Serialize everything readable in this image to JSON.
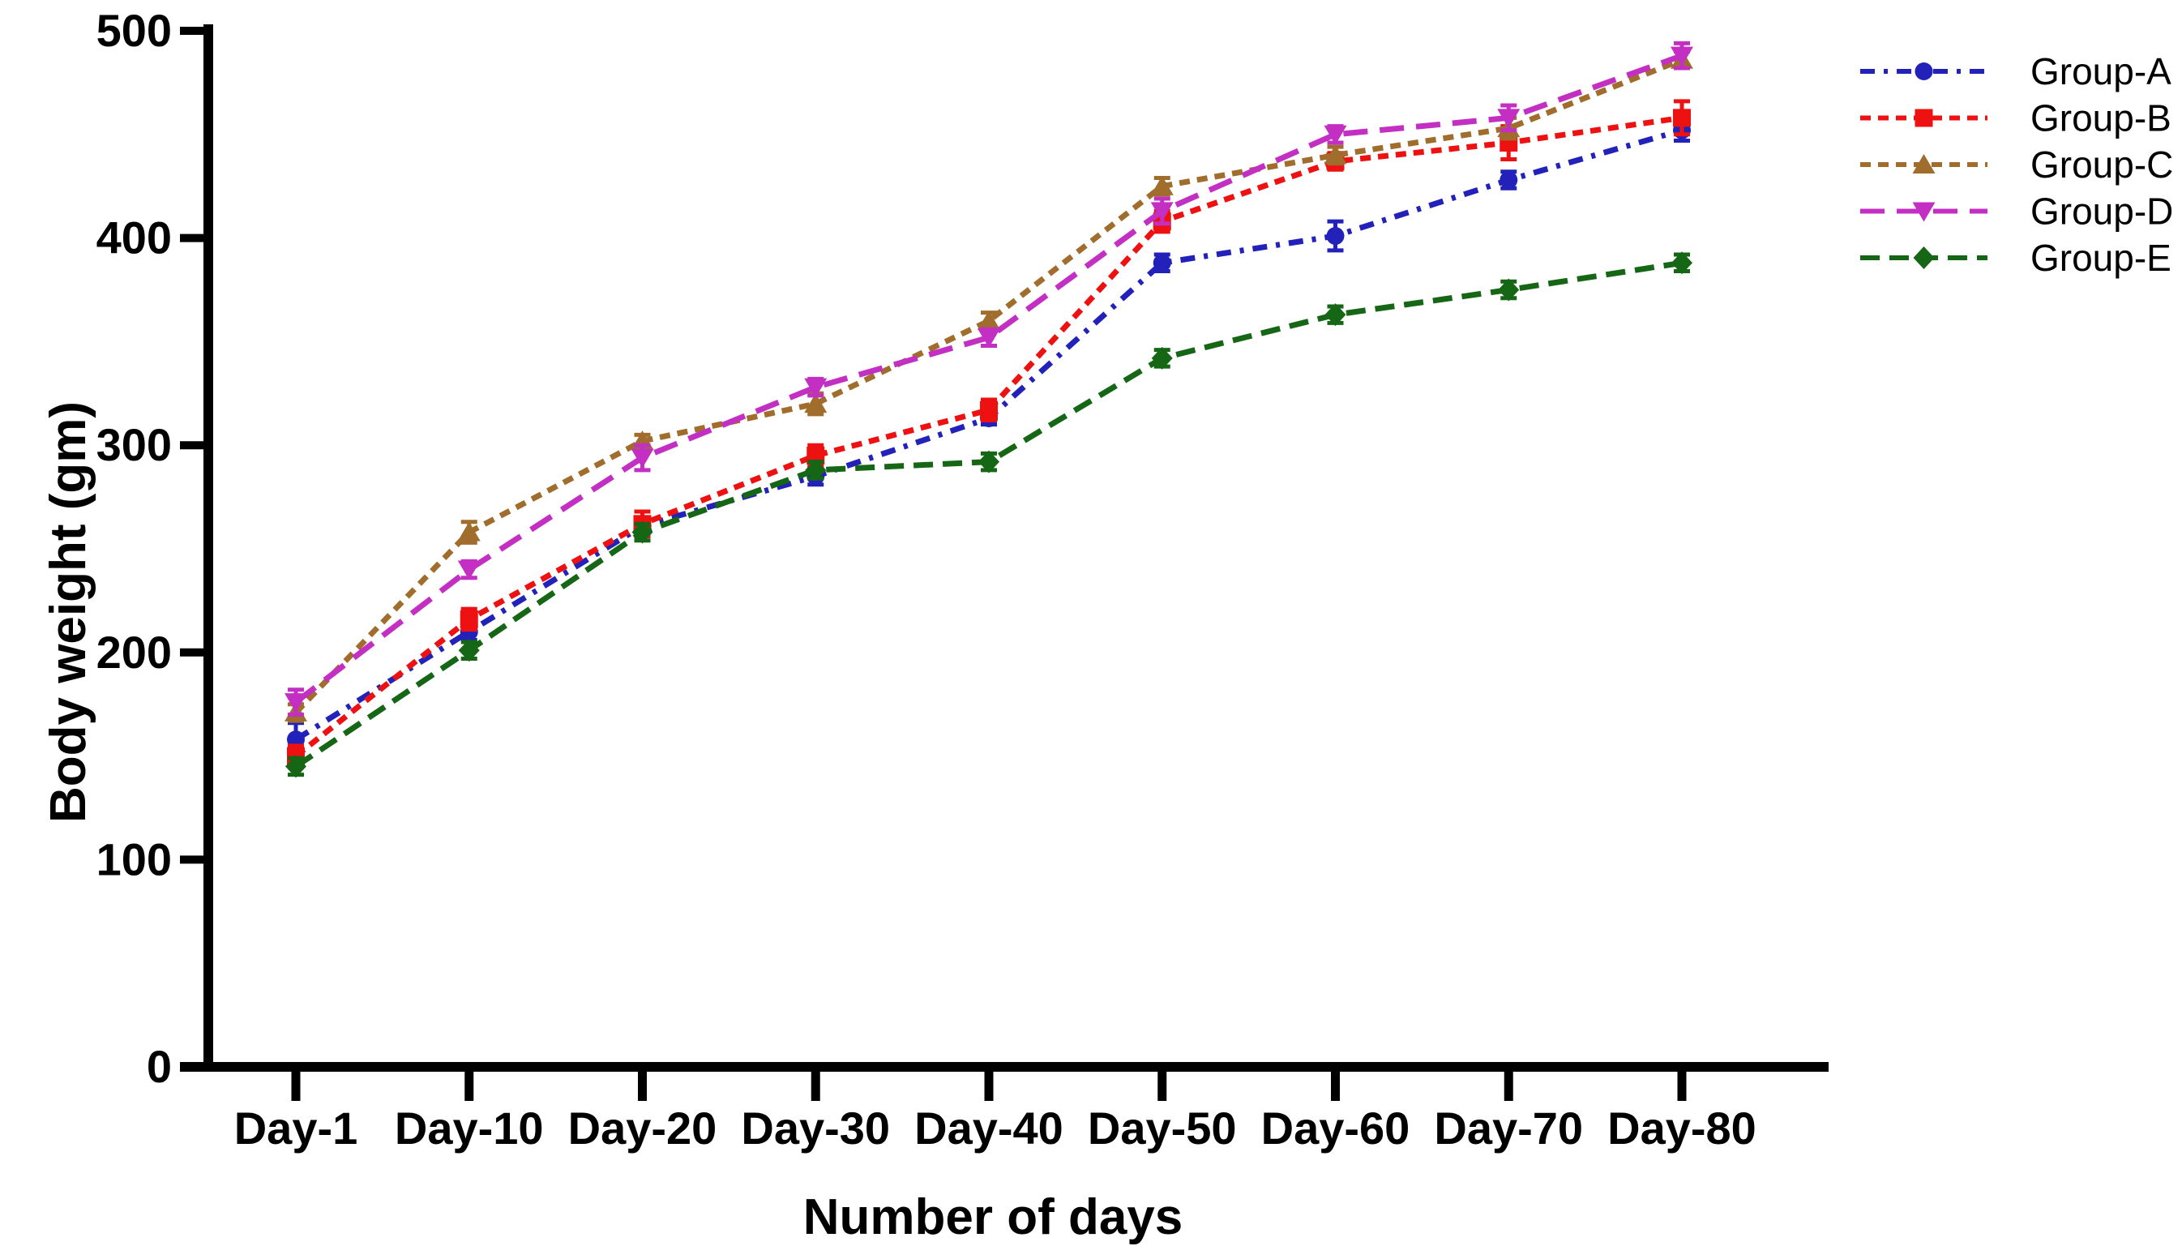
{
  "chart_data": {
    "type": "line",
    "title": "",
    "xlabel": "Number of days",
    "ylabel": "Body weight (gm)",
    "categories": [
      "Day-1",
      "Day-10",
      "Day-20",
      "Day-30",
      "Day-40",
      "Day-50",
      "Day-60",
      "Day-70",
      "Day-80"
    ],
    "ylim": [
      0,
      500
    ],
    "yticks": [
      0,
      100,
      200,
      300,
      400,
      500
    ],
    "grid": false,
    "error_bars": true,
    "legend_position": "top-right",
    "axis_color": "#000000",
    "series": [
      {
        "name": "Group-A",
        "color": "#2222bb",
        "marker": "circle",
        "dash": "dash-dot",
        "values": [
          158,
          210,
          261,
          285,
          313,
          388,
          401,
          428,
          452
        ],
        "errors": [
          8,
          4,
          3,
          4,
          3,
          4,
          7,
          4,
          5
        ]
      },
      {
        "name": "Group-B",
        "color": "#ee1111",
        "marker": "square",
        "dash": "short-dash",
        "values": [
          150,
          216,
          262,
          295,
          317,
          408,
          437,
          446,
          458
        ],
        "errors": [
          5,
          5,
          6,
          5,
          5,
          5,
          4,
          8,
          8
        ]
      },
      {
        "name": "Group-C",
        "color": "#a06d2c",
        "marker": "triangle-up",
        "dash": "short-dash",
        "values": [
          171,
          258,
          302,
          320,
          360,
          425,
          440,
          453,
          486
        ],
        "errors": [
          4,
          5,
          3,
          5,
          4,
          4,
          4,
          5,
          4
        ]
      },
      {
        "name": "Group-D",
        "color": "#c32fc3",
        "marker": "triangle-down",
        "dash": "long-dash",
        "values": [
          176,
          240,
          294,
          328,
          352,
          413,
          450,
          458,
          488
        ],
        "errors": [
          6,
          4,
          6,
          4,
          4,
          6,
          4,
          6,
          6
        ]
      },
      {
        "name": "Group-E",
        "color": "#156615",
        "marker": "diamond",
        "dash": "medium-dash",
        "values": [
          145,
          201,
          258,
          288,
          292,
          342,
          363,
          375,
          388
        ],
        "errors": [
          4,
          4,
          4,
          4,
          4,
          4,
          4,
          4,
          4
        ]
      }
    ]
  }
}
